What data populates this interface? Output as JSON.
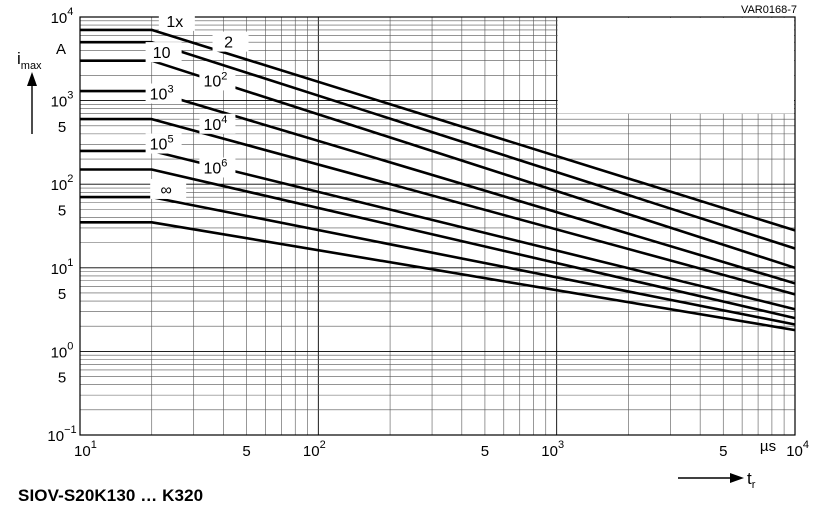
{
  "figure_id": "VAR0168-7",
  "figure_title": "SIOV-S20K130 … K320",
  "chart_data": {
    "type": "line",
    "x_scale": "log",
    "y_scale": "log",
    "xlim": [
      10,
      10000
    ],
    "ylim": [
      0.1,
      10000
    ],
    "grid": "log-minor",
    "y_label_main": "i",
    "y_label_sub": "max",
    "y_unit": "A",
    "x_label_main": "t",
    "x_label_sub": "r",
    "x_unit": "µs",
    "x_ticks": [
      {
        "base": "10",
        "exp": "1",
        "value": 10
      },
      {
        "base": "5",
        "exp": "",
        "value": 50
      },
      {
        "base": "10",
        "exp": "2",
        "value": 100
      },
      {
        "base": "5",
        "exp": "",
        "value": 500
      },
      {
        "base": "10",
        "exp": "3",
        "value": 1000
      },
      {
        "base": "5",
        "exp": "",
        "value": 5000
      },
      {
        "base": "10",
        "exp": "4",
        "value": 10000
      }
    ],
    "y_ticks": [
      {
        "base": "10",
        "exp": "4",
        "value": 10000
      },
      {
        "base": "10",
        "exp": "3",
        "value": 1000
      },
      {
        "base": "5",
        "exp": "",
        "value": 500
      },
      {
        "base": "10",
        "exp": "2",
        "value": 100
      },
      {
        "base": "5",
        "exp": "",
        "value": 50
      },
      {
        "base": "10",
        "exp": "1",
        "value": 10
      },
      {
        "base": "5",
        "exp": "",
        "value": 5
      },
      {
        "base": "10",
        "exp": "0",
        "value": 1
      },
      {
        "base": "5",
        "exp": "",
        "value": 0.5
      },
      {
        "base": "10",
        "exp": "−1",
        "value": 0.1
      }
    ],
    "series": [
      {
        "name_base": "1x",
        "name_exp": "",
        "label_at": [
          25,
          8500
        ],
        "points": [
          [
            10,
            7000
          ],
          [
            20,
            7000
          ],
          [
            10000,
            28
          ]
        ]
      },
      {
        "name_base": "2",
        "name_exp": "",
        "label_at": [
          42,
          4800
        ],
        "points": [
          [
            10,
            5000
          ],
          [
            20,
            5000
          ],
          [
            10000,
            17
          ]
        ]
      },
      {
        "name_base": "10",
        "name_exp": "",
        "label_at": [
          22,
          3600
        ],
        "points": [
          [
            10,
            3000
          ],
          [
            20,
            3000
          ],
          [
            10000,
            10
          ]
        ]
      },
      {
        "name_base": "10",
        "name_exp": "2",
        "label_at": [
          37,
          1650
        ],
        "points": [
          [
            10,
            1300
          ],
          [
            20,
            1300
          ],
          [
            10000,
            6.5
          ]
        ]
      },
      {
        "name_base": "10",
        "name_exp": "3",
        "label_at": [
          22,
          1150
        ],
        "points": [
          [
            10,
            600
          ],
          [
            20,
            600
          ],
          [
            10000,
            4.8
          ]
        ]
      },
      {
        "name_base": "10",
        "name_exp": "4",
        "label_at": [
          37,
          500
        ],
        "points": [
          [
            10,
            250
          ],
          [
            20,
            250
          ],
          [
            10000,
            3.2
          ]
        ]
      },
      {
        "name_base": "10",
        "name_exp": "5",
        "label_at": [
          22,
          290
        ],
        "points": [
          [
            10,
            150
          ],
          [
            20,
            150
          ],
          [
            10000,
            2.5
          ]
        ]
      },
      {
        "name_base": "10",
        "name_exp": "6",
        "label_at": [
          37,
          150
        ],
        "points": [
          [
            10,
            70
          ],
          [
            20,
            70
          ],
          [
            10000,
            2.1
          ]
        ]
      },
      {
        "name_base": "∞",
        "name_exp": "",
        "label_at": [
          23,
          83
        ],
        "points": [
          [
            10,
            35
          ],
          [
            20,
            35
          ],
          [
            10000,
            1.8
          ]
        ]
      }
    ]
  }
}
